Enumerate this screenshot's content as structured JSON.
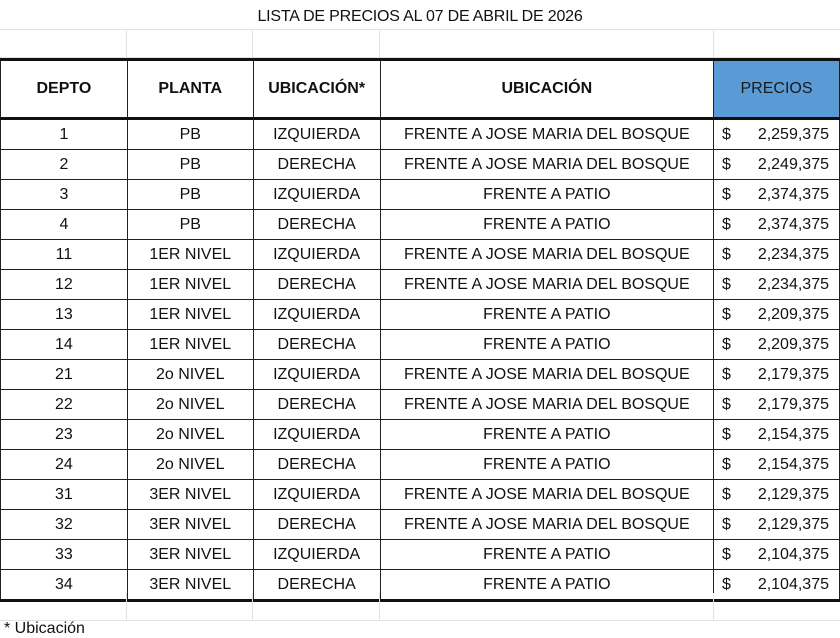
{
  "title": "LISTA DE PRECIOS AL 07 DE ABRIL DE 2026",
  "headers": {
    "depto": "DEPTO",
    "planta": "PLANTA",
    "ubicacion_a": "UBICACIÓN*",
    "ubicacion_b": "UBICACIÓN",
    "precios": "PRECIOS"
  },
  "colors": {
    "header_price_bg": "#5b9bd5"
  },
  "currency": "$",
  "rows": [
    {
      "depto": "1",
      "planta": "PB",
      "lado": "IZQUIERDA",
      "frente": "FRENTE A JOSE MARIA DEL BOSQUE",
      "precio": "2,259,375"
    },
    {
      "depto": "2",
      "planta": "PB",
      "lado": "DERECHA",
      "frente": "FRENTE A JOSE MARIA DEL BOSQUE",
      "precio": "2,249,375"
    },
    {
      "depto": "3",
      "planta": "PB",
      "lado": "IZQUIERDA",
      "frente": "FRENTE A PATIO",
      "precio": "2,374,375"
    },
    {
      "depto": "4",
      "planta": "PB",
      "lado": "DERECHA",
      "frente": "FRENTE A PATIO",
      "precio": "2,374,375"
    },
    {
      "depto": "11",
      "planta": "1ER NIVEL",
      "lado": "IZQUIERDA",
      "frente": "FRENTE A JOSE MARIA DEL BOSQUE",
      "precio": "2,234,375"
    },
    {
      "depto": "12",
      "planta": "1ER NIVEL",
      "lado": "DERECHA",
      "frente": "FRENTE A JOSE MARIA DEL BOSQUE",
      "precio": "2,234,375"
    },
    {
      "depto": "13",
      "planta": "1ER NIVEL",
      "lado": "IZQUIERDA",
      "frente": "FRENTE A PATIO",
      "precio": "2,209,375"
    },
    {
      "depto": "14",
      "planta": "1ER NIVEL",
      "lado": "DERECHA",
      "frente": "FRENTE A PATIO",
      "precio": "2,209,375"
    },
    {
      "depto": "21",
      "planta": "2o NIVEL",
      "lado": "IZQUIERDA",
      "frente": "FRENTE A JOSE MARIA DEL BOSQUE",
      "precio": "2,179,375"
    },
    {
      "depto": "22",
      "planta": "2o NIVEL",
      "lado": "DERECHA",
      "frente": "FRENTE A JOSE MARIA DEL BOSQUE",
      "precio": "2,179,375"
    },
    {
      "depto": "23",
      "planta": "2o NIVEL",
      "lado": "IZQUIERDA",
      "frente": "FRENTE A PATIO",
      "precio": "2,154,375"
    },
    {
      "depto": "24",
      "planta": "2o NIVEL",
      "lado": "DERECHA",
      "frente": "FRENTE A PATIO",
      "precio": "2,154,375"
    },
    {
      "depto": "31",
      "planta": "3ER NIVEL",
      "lado": "IZQUIERDA",
      "frente": "FRENTE A JOSE MARIA DEL BOSQUE",
      "precio": "2,129,375"
    },
    {
      "depto": "32",
      "planta": "3ER NIVEL",
      "lado": "DERECHA",
      "frente": "FRENTE A JOSE MARIA DEL BOSQUE",
      "precio": "2,129,375"
    },
    {
      "depto": "33",
      "planta": "3ER NIVEL",
      "lado": "IZQUIERDA",
      "frente": "FRENTE A PATIO",
      "precio": "2,104,375"
    },
    {
      "depto": "34",
      "planta": "3ER NIVEL",
      "lado": "DERECHA",
      "frente": "FRENTE A PATIO",
      "precio": "2,104,375"
    }
  ],
  "footnote": "* Ubicación"
}
